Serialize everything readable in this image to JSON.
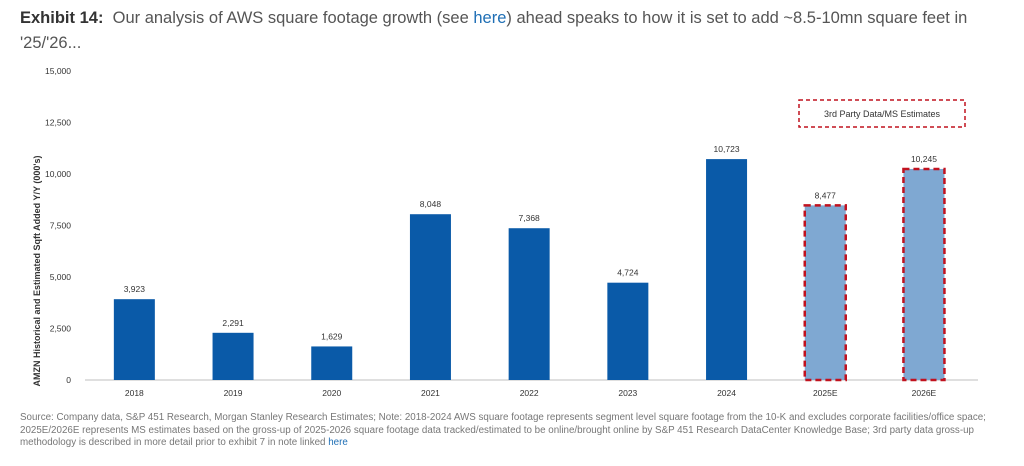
{
  "header": {
    "exhibit_label": "Exhibit 14:",
    "text_before_link": "Our analysis of AWS square footage growth (see ",
    "link_text": "here",
    "text_after_link": ") ahead speaks to how it is set to add ~8.5-10mn square feet in '25/'26..."
  },
  "chart_data": {
    "type": "bar",
    "categories": [
      "2018",
      "2019",
      "2020",
      "2021",
      "2022",
      "2023",
      "2024",
      "2025E",
      "2026E"
    ],
    "values": [
      3923,
      2291,
      1629,
      8048,
      7368,
      4724,
      10723,
      8477,
      10245
    ],
    "value_labels": [
      "3,923",
      "2,291",
      "1,629",
      "8,048",
      "7,368",
      "4,724",
      "10,723",
      "8,477",
      "10,245"
    ],
    "estimate_flags": [
      false,
      false,
      false,
      false,
      false,
      false,
      false,
      true,
      true
    ],
    "ylabel": "AMZN Historical and Estimated Sqft Added Y/Y (000's)",
    "ylim": [
      0,
      15000
    ],
    "yticks": [
      0,
      2500,
      5000,
      7500,
      10000,
      12500,
      15000
    ],
    "ytick_labels": [
      "0",
      "2,500",
      "5,000",
      "7,500",
      "10,000",
      "12,500",
      "15,000"
    ],
    "annotation": "3rd Party Data/MS Estimates",
    "grid": false,
    "colors": {
      "actual": "#0a5aa8",
      "estimate": "#7fa8d2",
      "estimate_border": "#c1121f",
      "annotation_border": "#c1121f"
    }
  },
  "footer": {
    "source_text": "Source: Company data, S&P 451 Research, Morgan Stanley Research Estimates; Note: 2018-2024 AWS square footage represents segment level square footage from the 10-K and excludes corporate facilities/office space; 2025E/2026E represents MS estimates based on the gross-up of 2025-2026 square footage data tracked/estimated to be online/brought online by S&P 451 Research DataCenter Knowledge Base; 3rd party data gross-up methodology is described in more detail prior to exhibit 7 in note linked ",
    "link_text": "here"
  }
}
